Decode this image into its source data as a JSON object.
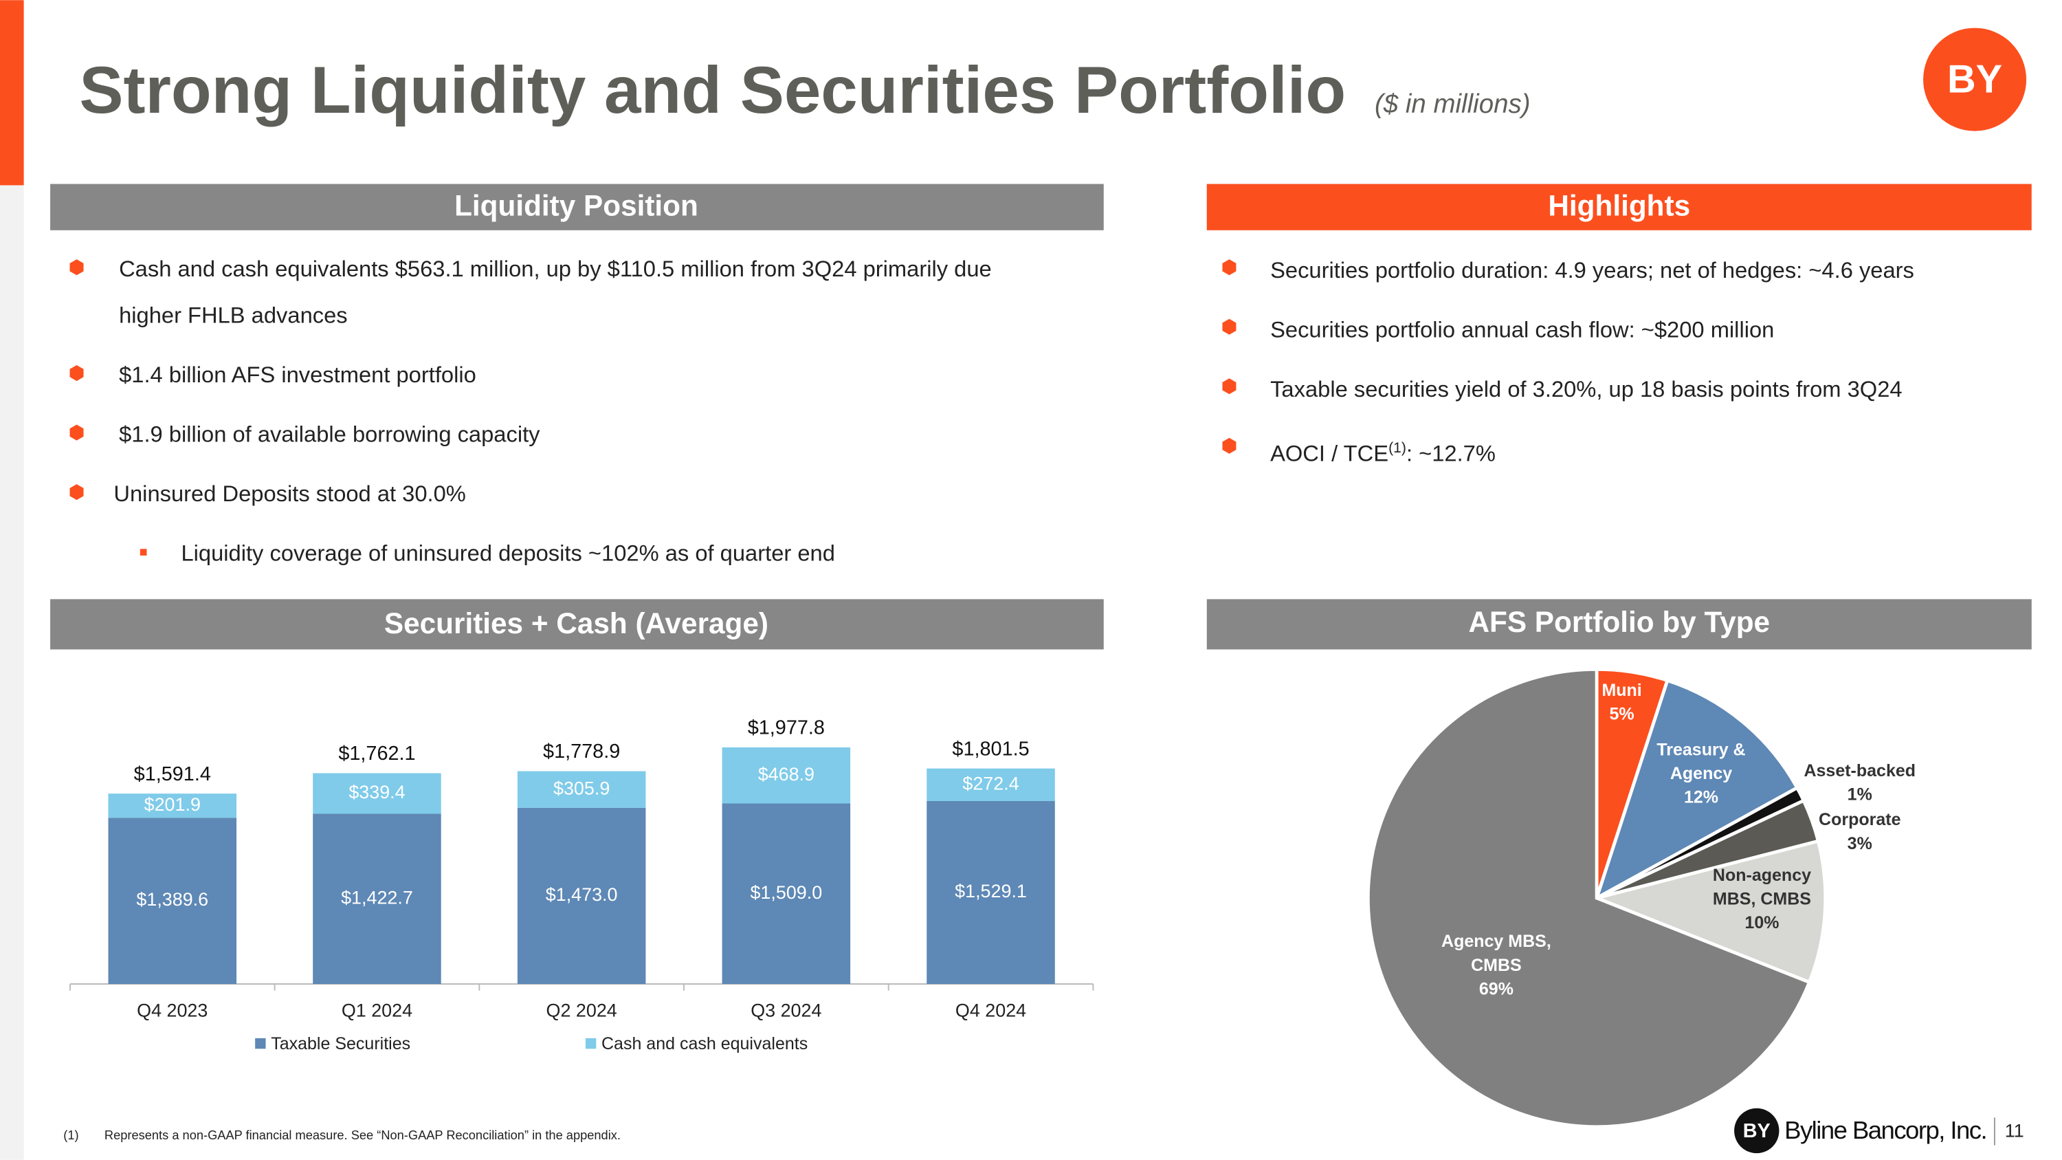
{
  "title": "Strong Liquidity and Securities Portfolio",
  "subtitle": "($ in millions)",
  "liquidity": {
    "heading": "Liquidity Position",
    "bullets": [
      "Cash and cash equivalents $563.1 million, up by $110.5 million from 3Q24 primarily due higher FHLB advances",
      "$1.4 billion AFS investment portfolio",
      "$1.9 billion of available borrowing capacity",
      "Uninsured Deposits stood at 30.0%"
    ],
    "sub_bullets": [
      "Liquidity coverage of uninsured deposits ~102% as of quarter end"
    ]
  },
  "highlights": {
    "heading": "Highlights",
    "bullets": [
      "Securities portfolio duration: 4.9 years; net of hedges: ~4.6 years",
      "Securities portfolio annual cash flow: ~$200 million",
      "Taxable securities yield of 3.20%, up 18 basis points from 3Q24",
      {
        "parts": [
          "AOCI / TCE",
          "(1)",
          ": ~12.7%"
        ]
      }
    ]
  },
  "chart_data": [
    {
      "type": "bar",
      "stacked": true,
      "title": "Securities + Cash (Average)",
      "categories": [
        "Q4 2023",
        "Q1 2024",
        "Q2 2024",
        "Q3 2024",
        "Q4 2024"
      ],
      "series": [
        {
          "name": "Taxable Securities",
          "color": "#5e88b5",
          "values": [
            1389.6,
            1422.7,
            1473.0,
            1509.0,
            1529.1
          ],
          "value_labels": [
            "$1,389.6",
            "$1,422.7",
            "$1,473.0",
            "$1,509.0",
            "$1,529.1"
          ]
        },
        {
          "name": "Cash and cash equivalents",
          "color": "#7fcbe9",
          "values": [
            201.9,
            339.4,
            305.9,
            468.9,
            272.4
          ],
          "value_labels": [
            "$201.9",
            "$339.4",
            "$305.9",
            "$468.9",
            "$272.4"
          ]
        }
      ],
      "totals": [
        1591.4,
        1762.1,
        1778.9,
        1977.8,
        1801.5
      ],
      "total_labels": [
        "$1,591.4",
        "$1,762.1",
        "$1,778.9",
        "$1,977.8",
        "$1,801.5"
      ],
      "ylim": [
        0,
        2200
      ],
      "legend": "bottom"
    },
    {
      "type": "pie",
      "title": "AFS Portfolio by Type",
      "categories": [
        "Muni",
        "Treasury & Agency",
        "Asset-backed",
        "Corporate",
        "Non-agency MBS, CMBS",
        "Agency MBS, CMBS"
      ],
      "values": [
        5,
        12,
        1,
        3,
        10,
        69
      ],
      "value_labels": [
        "5%",
        "12%",
        "1%",
        "3%",
        "10%",
        "69%"
      ],
      "colors": [
        "#fc4f1e",
        "#5e88b5",
        "#111111",
        "#5b5a55",
        "#d7d7d3",
        "#808080"
      ]
    }
  ],
  "footnote": {
    "marker": "(1)",
    "text": "Represents a non-GAAP financial measure.  See “Non-GAAP Reconciliation” in the appendix."
  },
  "logo": "BY",
  "brand": "Byline Bancorp, Inc.",
  "page": "11"
}
